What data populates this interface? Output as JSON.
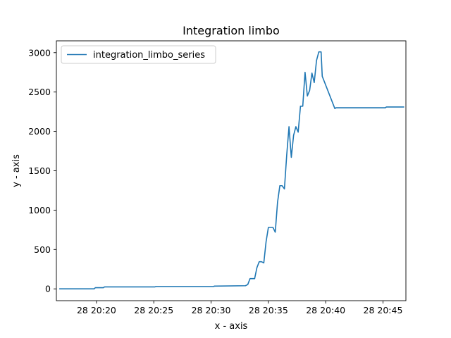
{
  "chart_data": {
    "type": "line",
    "title": "Integration limbo",
    "xlabel": "x - axis",
    "ylabel": "y - axis",
    "xlim": [
      "28 20:16:30",
      "28 20:47:00"
    ],
    "ylim": [
      -150,
      3150
    ],
    "xticks": [
      {
        "label": "28 20:20",
        "value": "28 20:20:00"
      },
      {
        "label": "28 20:25",
        "value": "28 20:25:00"
      },
      {
        "label": "28 20:30",
        "value": "28 20:30:00"
      },
      {
        "label": "28 20:35",
        "value": "28 20:35:00"
      },
      {
        "label": "28 20:40",
        "value": "28 20:40:00"
      },
      {
        "label": "28 20:45",
        "value": "28 20:45:00"
      }
    ],
    "yticks": [
      0,
      500,
      1000,
      1500,
      2000,
      2500,
      3000
    ],
    "grid": false,
    "legend": "upper-left",
    "series": [
      {
        "name": "integration_limbo_series",
        "color": "#1f77b4",
        "x": [
          "28 20:16:48",
          "28 20:19:48",
          "28 20:19:54",
          "28 20:20:36",
          "28 20:20:42",
          "28 20:25:06",
          "28 20:25:12",
          "28 20:30:12",
          "28 20:30:18",
          "28 20:33:00",
          "28 20:33:12",
          "28 20:33:24",
          "28 20:33:48",
          "28 20:34:00",
          "28 20:34:12",
          "28 20:34:24",
          "28 20:34:36",
          "28 20:34:48",
          "28 20:35:00",
          "28 20:35:24",
          "28 20:35:36",
          "28 20:35:48",
          "28 20:36:00",
          "28 20:36:12",
          "28 20:36:24",
          "28 20:36:36",
          "28 20:36:48",
          "28 20:37:00",
          "28 20:37:12",
          "28 20:37:24",
          "28 20:37:36",
          "28 20:37:48",
          "28 20:38:00",
          "28 20:38:12",
          "28 20:38:24",
          "28 20:38:36",
          "28 20:38:48",
          "28 20:39:00",
          "28 20:39:12",
          "28 20:39:24",
          "28 20:39:36",
          "28 20:39:42",
          "28 20:40:48",
          "28 20:40:54",
          "28 20:45:12",
          "28 20:45:18",
          "28 20:46:48"
        ],
        "y": [
          0,
          0,
          15,
          15,
          25,
          25,
          30,
          30,
          35,
          40,
          55,
          130,
          130,
          270,
          345,
          345,
          330,
          600,
          780,
          780,
          720,
          1100,
          1310,
          1310,
          1270,
          1700,
          2060,
          1670,
          1950,
          2060,
          1990,
          2320,
          2320,
          2750,
          2450,
          2520,
          2740,
          2620,
          2900,
          3010,
          3010,
          2700,
          2290,
          2300,
          2300,
          2310,
          2310
        ]
      }
    ]
  }
}
